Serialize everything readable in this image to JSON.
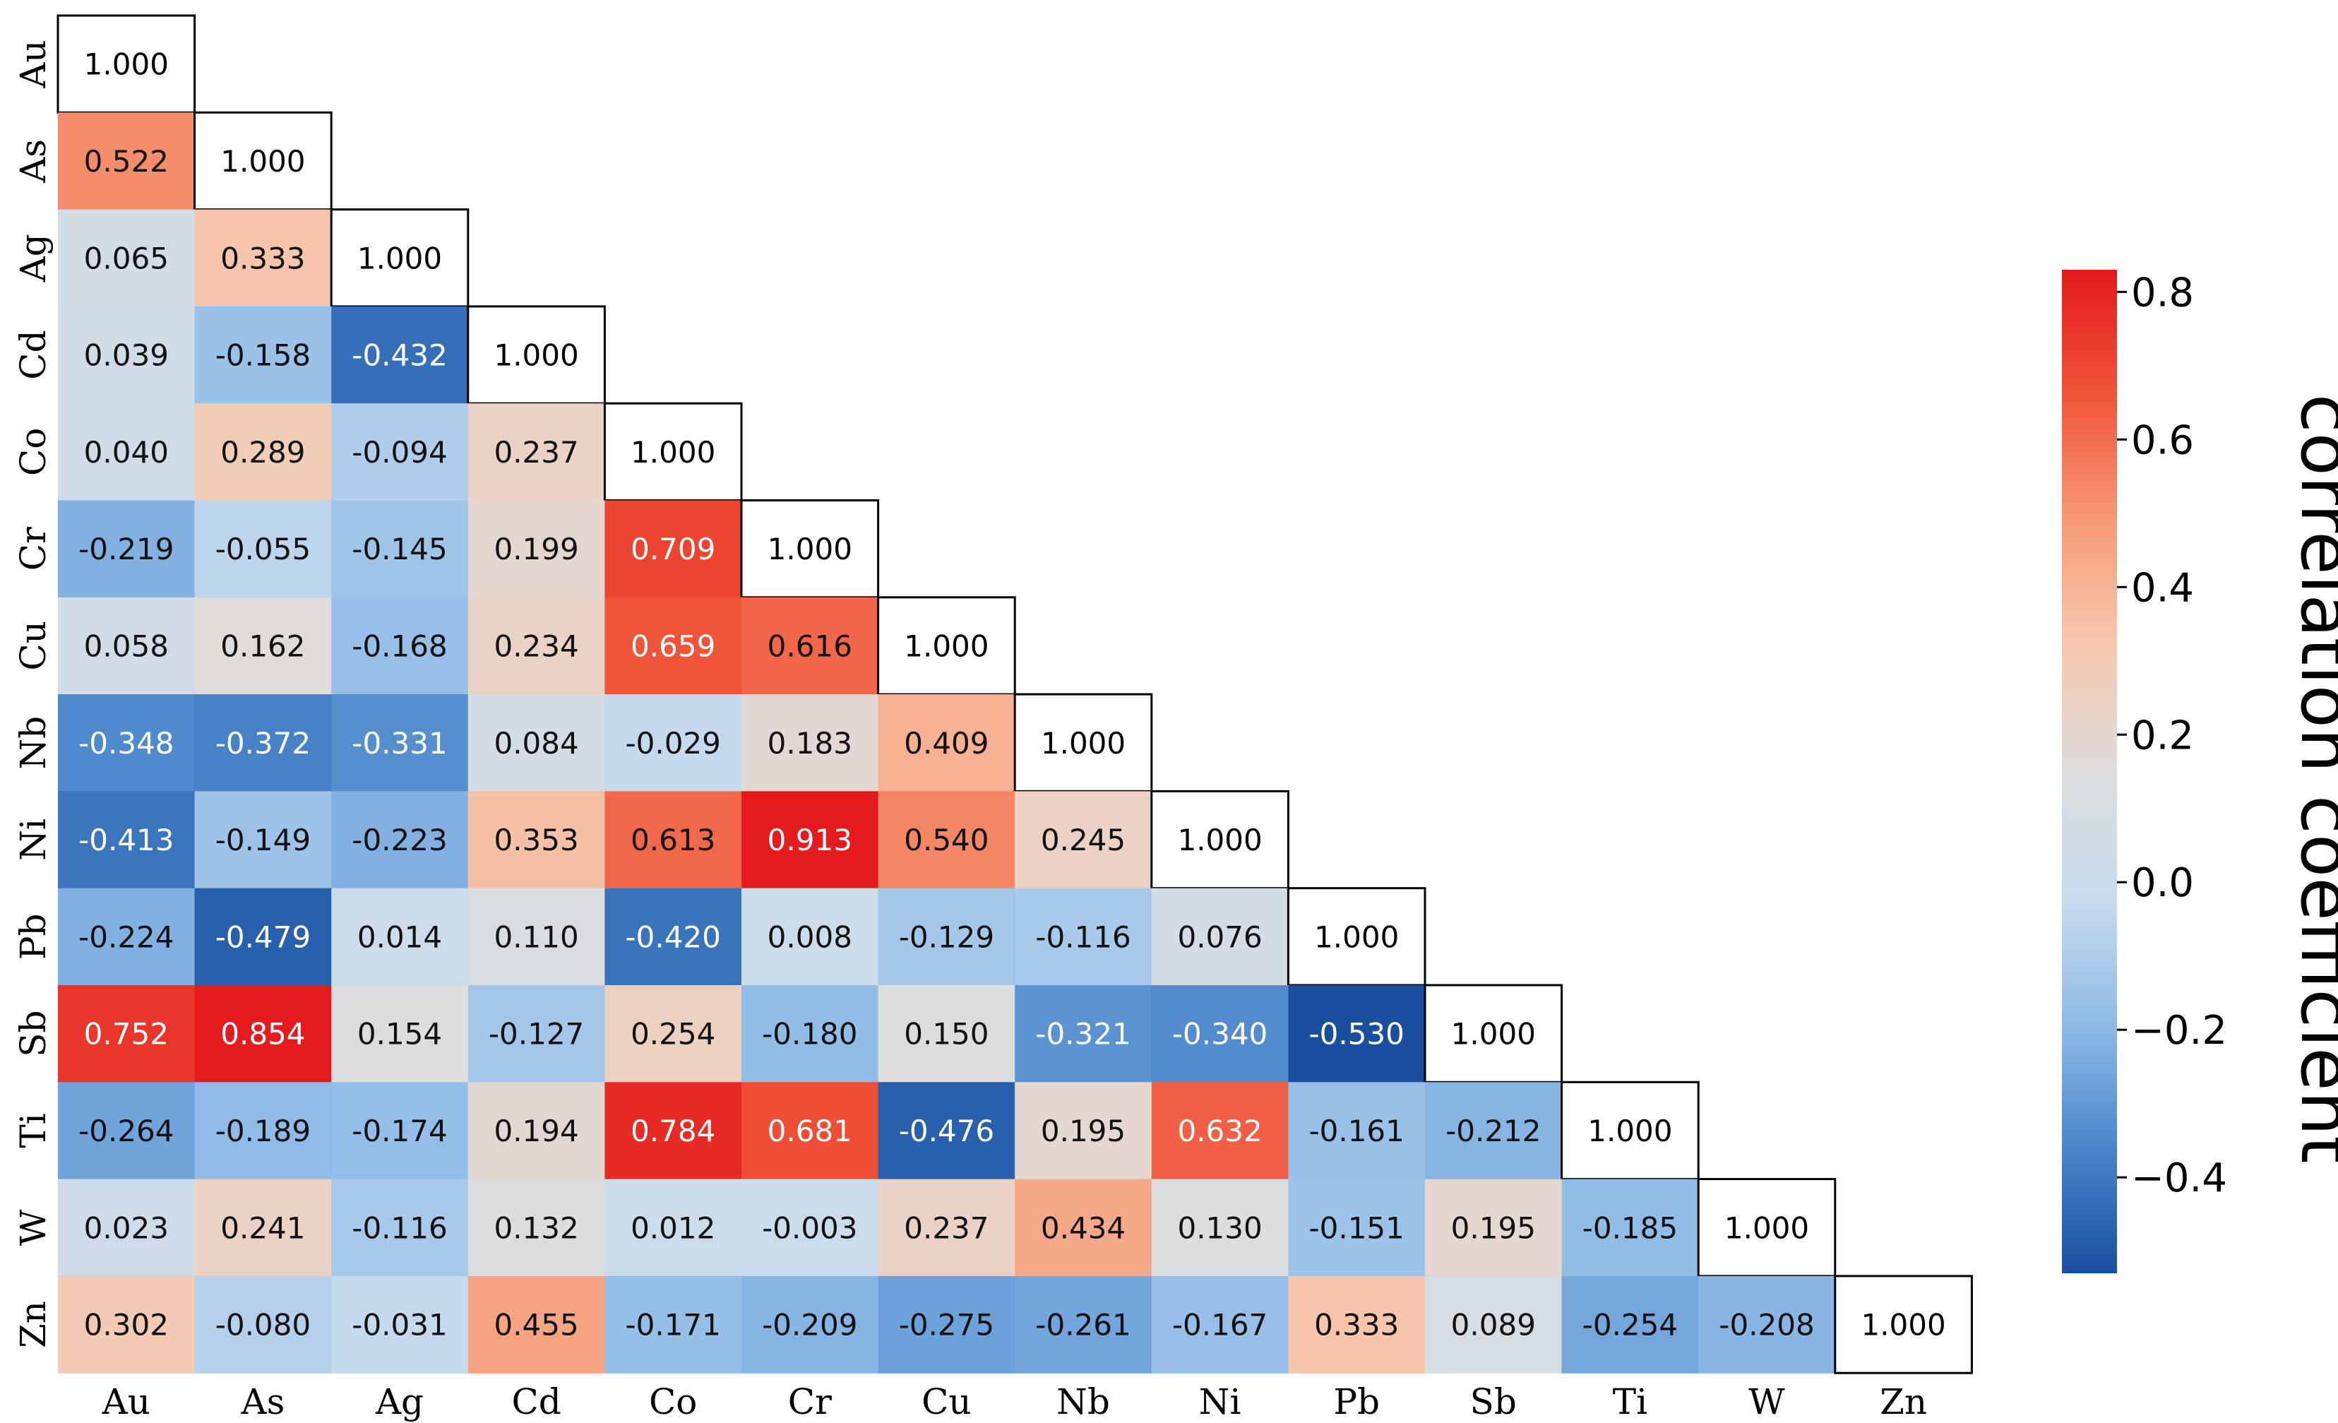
{
  "chart_data": {
    "type": "heatmap",
    "title": "",
    "variables": [
      "Au",
      "As",
      "Ag",
      "Cd",
      "Co",
      "Cr",
      "Cu",
      "Nb",
      "Ni",
      "Pb",
      "Sb",
      "Ti",
      "W",
      "Zn"
    ],
    "matrix_lower": [
      [
        "1.000"
      ],
      [
        "0.522",
        "1.000"
      ],
      [
        "0.065",
        "0.333",
        "1.000"
      ],
      [
        "0.039",
        "-0.158",
        "-0.432",
        "1.000"
      ],
      [
        "0.040",
        "0.289",
        "-0.094",
        "0.237",
        "1.000"
      ],
      [
        "-0.219",
        "-0.055",
        "-0.145",
        "0.199",
        "0.709",
        "1.000"
      ],
      [
        "0.058",
        "0.162",
        "-0.168",
        "0.234",
        "0.659",
        "0.616",
        "1.000"
      ],
      [
        "-0.348",
        "-0.372",
        "-0.331",
        "0.084",
        "-0.029",
        "0.183",
        "0.409",
        "1.000"
      ],
      [
        "-0.413",
        "-0.149",
        "-0.223",
        "0.353",
        "0.613",
        "0.913",
        "0.540",
        "0.245",
        "1.000"
      ],
      [
        "-0.224",
        "-0.479",
        "0.014",
        "0.110",
        "-0.420",
        "0.008",
        "-0.129",
        "-0.116",
        "0.076",
        "1.000"
      ],
      [
        "0.752",
        "0.854",
        "0.154",
        "-0.127",
        "0.254",
        "-0.180",
        "0.150",
        "-0.321",
        "-0.340",
        "-0.530",
        "1.000"
      ],
      [
        "-0.264",
        "-0.189",
        "-0.174",
        "0.194",
        "0.784",
        "0.681",
        "-0.476",
        "0.195",
        "0.632",
        "-0.161",
        "-0.212",
        "1.000"
      ],
      [
        "0.023",
        "0.241",
        "-0.116",
        "0.132",
        "0.012",
        "-0.003",
        "0.237",
        "0.434",
        "0.130",
        "-0.151",
        "0.195",
        "-0.185",
        "1.000"
      ],
      [
        "0.302",
        "-0.080",
        "-0.031",
        "0.455",
        "-0.171",
        "-0.209",
        "-0.275",
        "-0.261",
        "-0.167",
        "0.333",
        "0.089",
        "-0.254",
        "-0.208",
        "1.000"
      ]
    ],
    "colorbar": {
      "label": "correlation coefficient",
      "vmin": -0.53,
      "vmax": 0.83,
      "ticks": [
        0.8,
        0.6,
        0.4,
        0.2,
        0.0,
        -0.2,
        -0.4
      ],
      "tick_labels": [
        "0.8",
        "0.6",
        "0.4",
        "0.2",
        "0.0",
        "−0.2",
        "−0.4"
      ],
      "colors": [
        "#1a4f9f",
        "#4a86cc",
        "#8fbbe6",
        "#c9dcee",
        "#dddddd",
        "#f6c9b0",
        "#f69a76",
        "#f0553a",
        "#e41a1c"
      ]
    },
    "diagonal_fill": "#ffffff"
  }
}
